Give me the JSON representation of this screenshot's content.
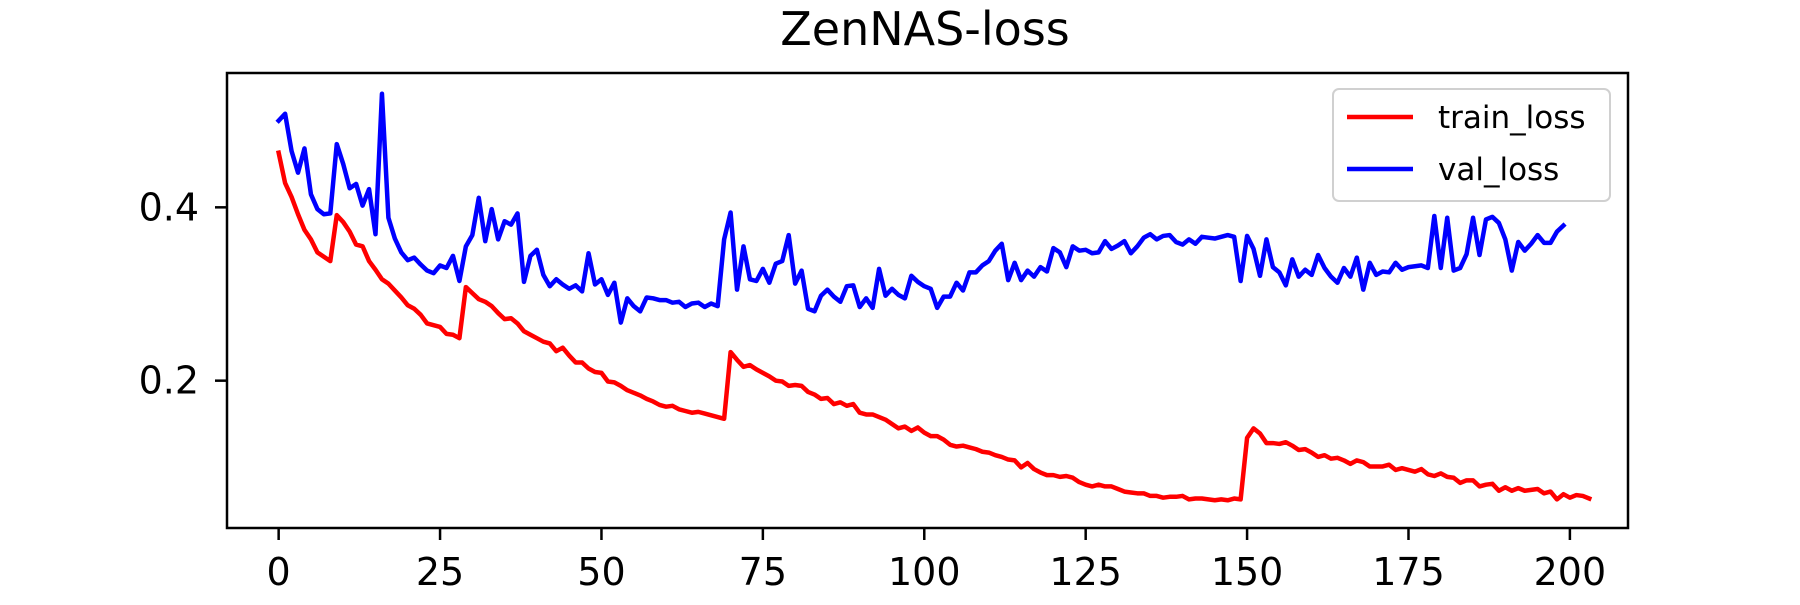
{
  "chart_data": {
    "type": "line",
    "title": "ZenNAS-loss",
    "xlabel": "",
    "ylabel": "",
    "xlim": [
      -8,
      209
    ],
    "ylim": [
      0.03,
      0.555
    ],
    "x_ticks": [
      0,
      25,
      50,
      75,
      100,
      125,
      150,
      175,
      200
    ],
    "y_ticks": [
      0.2,
      0.4
    ],
    "y_tick_labels": [
      "0.2",
      "0.4"
    ],
    "grid": false,
    "legend": "top-right",
    "series": [
      {
        "name": "train_loss",
        "color": "#ff0000",
        "x_start": 0,
        "values": [
          0.463,
          0.428,
          0.412,
          0.392,
          0.374,
          0.363,
          0.348,
          0.343,
          0.338,
          0.391,
          0.383,
          0.372,
          0.357,
          0.355,
          0.338,
          0.328,
          0.317,
          0.312,
          0.304,
          0.296,
          0.287,
          0.283,
          0.276,
          0.266,
          0.264,
          0.262,
          0.254,
          0.253,
          0.249,
          0.308,
          0.301,
          0.294,
          0.291,
          0.286,
          0.278,
          0.271,
          0.272,
          0.266,
          0.257,
          0.253,
          0.249,
          0.245,
          0.243,
          0.234,
          0.238,
          0.229,
          0.221,
          0.221,
          0.214,
          0.21,
          0.209,
          0.199,
          0.198,
          0.194,
          0.189,
          0.186,
          0.183,
          0.179,
          0.176,
          0.172,
          0.17,
          0.171,
          0.167,
          0.165,
          0.163,
          0.164,
          0.162,
          0.16,
          0.158,
          0.156,
          0.233,
          0.224,
          0.216,
          0.218,
          0.213,
          0.209,
          0.205,
          0.2,
          0.199,
          0.194,
          0.195,
          0.194,
          0.187,
          0.184,
          0.179,
          0.18,
          0.173,
          0.175,
          0.171,
          0.173,
          0.163,
          0.161,
          0.161,
          0.158,
          0.155,
          0.15,
          0.145,
          0.147,
          0.142,
          0.146,
          0.14,
          0.136,
          0.136,
          0.132,
          0.126,
          0.124,
          0.125,
          0.123,
          0.121,
          0.118,
          0.117,
          0.114,
          0.112,
          0.109,
          0.108,
          0.1,
          0.105,
          0.098,
          0.094,
          0.091,
          0.091,
          0.089,
          0.09,
          0.088,
          0.083,
          0.08,
          0.078,
          0.08,
          0.078,
          0.078,
          0.075,
          0.072,
          0.071,
          0.07,
          0.07,
          0.067,
          0.067,
          0.065,
          0.066,
          0.066,
          0.067,
          0.063,
          0.064,
          0.064,
          0.063,
          0.062,
          0.063,
          0.062,
          0.064,
          0.063,
          0.134,
          0.145,
          0.139,
          0.128,
          0.128,
          0.127,
          0.129,
          0.125,
          0.12,
          0.121,
          0.117,
          0.112,
          0.114,
          0.11,
          0.111,
          0.108,
          0.104,
          0.108,
          0.106,
          0.101,
          0.101,
          0.101,
          0.103,
          0.097,
          0.099,
          0.097,
          0.095,
          0.098,
          0.092,
          0.09,
          0.093,
          0.089,
          0.088,
          0.082,
          0.085,
          0.085,
          0.078,
          0.08,
          0.081,
          0.073,
          0.077,
          0.073,
          0.076,
          0.073,
          0.074,
          0.075,
          0.07,
          0.072,
          0.063,
          0.069,
          0.065,
          0.068,
          0.067,
          0.064
        ]
      },
      {
        "name": "val_loss",
        "color": "#0000ff",
        "x_start": 0,
        "values": [
          0.5,
          0.508,
          0.465,
          0.44,
          0.468,
          0.415,
          0.398,
          0.392,
          0.393,
          0.473,
          0.45,
          0.422,
          0.427,
          0.402,
          0.421,
          0.369,
          0.531,
          0.388,
          0.364,
          0.348,
          0.339,
          0.342,
          0.334,
          0.327,
          0.324,
          0.333,
          0.33,
          0.344,
          0.315,
          0.355,
          0.368,
          0.411,
          0.361,
          0.398,
          0.363,
          0.384,
          0.38,
          0.393,
          0.314,
          0.344,
          0.351,
          0.322,
          0.309,
          0.317,
          0.311,
          0.306,
          0.31,
          0.303,
          0.347,
          0.311,
          0.317,
          0.299,
          0.313,
          0.267,
          0.295,
          0.286,
          0.28,
          0.296,
          0.295,
          0.293,
          0.293,
          0.29,
          0.291,
          0.285,
          0.289,
          0.29,
          0.285,
          0.289,
          0.286,
          0.363,
          0.394,
          0.305,
          0.355,
          0.317,
          0.315,
          0.329,
          0.313,
          0.335,
          0.338,
          0.368,
          0.312,
          0.327,
          0.283,
          0.28,
          0.298,
          0.305,
          0.297,
          0.291,
          0.309,
          0.31,
          0.285,
          0.295,
          0.284,
          0.329,
          0.298,
          0.306,
          0.299,
          0.295,
          0.321,
          0.314,
          0.309,
          0.306,
          0.284,
          0.297,
          0.297,
          0.313,
          0.304,
          0.325,
          0.325,
          0.333,
          0.338,
          0.35,
          0.358,
          0.316,
          0.336,
          0.316,
          0.327,
          0.32,
          0.331,
          0.326,
          0.353,
          0.348,
          0.331,
          0.355,
          0.35,
          0.351,
          0.347,
          0.348,
          0.361,
          0.352,
          0.356,
          0.361,
          0.347,
          0.355,
          0.365,
          0.369,
          0.363,
          0.367,
          0.368,
          0.36,
          0.357,
          0.363,
          0.358,
          0.366,
          0.365,
          0.364,
          0.366,
          0.368,
          0.366,
          0.315,
          0.367,
          0.352,
          0.321,
          0.363,
          0.331,
          0.325,
          0.31,
          0.34,
          0.32,
          0.328,
          0.322,
          0.345,
          0.33,
          0.32,
          0.313,
          0.33,
          0.32,
          0.342,
          0.305,
          0.336,
          0.322,
          0.326,
          0.325,
          0.336,
          0.328,
          0.331,
          0.332,
          0.333,
          0.33,
          0.39,
          0.33,
          0.388,
          0.327,
          0.33,
          0.346,
          0.388,
          0.345,
          0.386,
          0.389,
          0.382,
          0.363,
          0.327,
          0.36,
          0.35,
          0.358,
          0.368,
          0.359,
          0.359,
          0.372,
          0.379
        ]
      }
    ]
  }
}
